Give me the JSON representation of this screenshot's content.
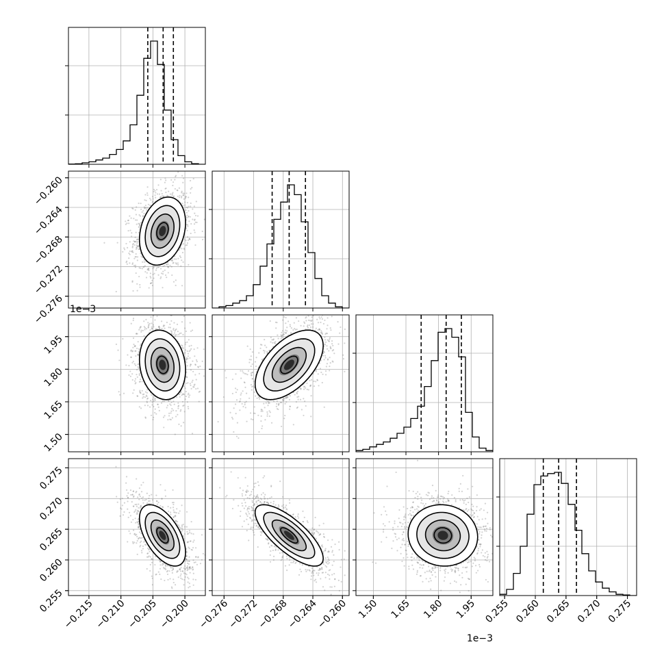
{
  "chart_data": {
    "type": "corner",
    "title": "",
    "grid": true,
    "parameters": [
      {
        "range": [
          -0.2182,
          -0.1968
        ],
        "ticks": [
          -0.215,
          -0.21,
          -0.205,
          -0.2
        ],
        "tick_labels": [
          "−0.215",
          "−0.210",
          "−0.205",
          "−0.200"
        ],
        "quantiles": [
          -0.2058,
          -0.2034,
          -0.2018
        ],
        "mean": -0.2035,
        "sd": 0.0018,
        "histogram": [
          0.002,
          0.004,
          0.012,
          0.02,
          0.035,
          0.05,
          0.08,
          0.12,
          0.19,
          0.32,
          0.56,
          0.86,
          1.0,
          0.81,
          0.44,
          0.2,
          0.07,
          0.02,
          0.005,
          0.0
        ]
      },
      {
        "range": [
          -0.2776,
          -0.2591
        ],
        "ticks": [
          -0.276,
          -0.272,
          -0.268,
          -0.264,
          -0.26
        ],
        "tick_labels": [
          "−0.276",
          "−0.272",
          "−0.268",
          "−0.264",
          "−0.260"
        ],
        "quantiles": [
          -0.2695,
          -0.2672,
          -0.265
        ],
        "mean": -0.2672,
        "sd": 0.0023,
        "histogram": [
          0.0,
          0.01,
          0.02,
          0.04,
          0.06,
          0.1,
          0.19,
          0.34,
          0.52,
          0.72,
          0.86,
          1.0,
          0.92,
          0.7,
          0.45,
          0.24,
          0.1,
          0.04,
          0.01,
          0.0
        ]
      },
      {
        "range": [
          1.42,
          2.05
        ],
        "ticks": [
          1.5,
          1.65,
          1.8,
          1.95
        ],
        "tick_labels": [
          "1.50",
          "1.65",
          "1.80",
          "1.95"
        ],
        "offset_label": "1e−3",
        "quantiles": [
          1.72,
          1.835,
          1.905
        ],
        "mean": 1.82,
        "sd": 0.08,
        "histogram": [
          0.01,
          0.02,
          0.04,
          0.06,
          0.08,
          0.11,
          0.15,
          0.2,
          0.27,
          0.37,
          0.53,
          0.74,
          0.97,
          1.0,
          0.93,
          0.77,
          0.32,
          0.12,
          0.03,
          0.01
        ]
      },
      {
        "range": [
          0.2542,
          0.2765
        ],
        "ticks": [
          0.255,
          0.26,
          0.265,
          0.27,
          0.275
        ],
        "tick_labels": [
          "0.255",
          "0.260",
          "0.265",
          "0.270",
          "0.275"
        ],
        "quantiles": [
          0.2613,
          0.2638,
          0.2667
        ],
        "mean": 0.264,
        "sd": 0.0025,
        "histogram": [
          0.01,
          0.05,
          0.18,
          0.4,
          0.66,
          0.9,
          0.97,
          0.99,
          1.0,
          0.91,
          0.74,
          0.53,
          0.34,
          0.2,
          0.11,
          0.06,
          0.03,
          0.01,
          0.005,
          0.0
        ]
      }
    ],
    "correlations": {
      "1-0": 0.25,
      "2-0": -0.15,
      "2-1": 0.55,
      "3-0": -0.55,
      "3-1": -0.75,
      "3-2": -0.05
    }
  }
}
